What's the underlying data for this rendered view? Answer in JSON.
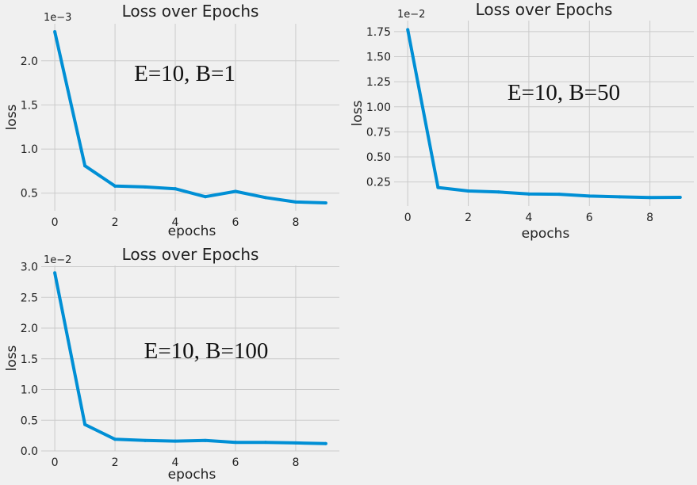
{
  "chart_data": [
    {
      "type": "line",
      "title": "Loss over Epochs",
      "xlabel": "epochs",
      "ylabel": "loss",
      "offset_text": "1e−3",
      "annotation": "E=10, B=1",
      "color": "#008fd5",
      "grid": true,
      "x": [
        0,
        1,
        2,
        3,
        4,
        5,
        6,
        7,
        8,
        9
      ],
      "y": [
        0.00233,
        0.00081,
        0.00058,
        0.00057,
        0.00055,
        0.00046,
        0.00052,
        0.00045,
        0.0004,
        0.00039
      ],
      "xlim": [
        -0.45,
        9.45
      ],
      "ylim": [
        0.0003,
        0.00242
      ],
      "xticks": [
        0,
        2,
        4,
        6,
        8
      ],
      "xtick_labels": [
        "0",
        "2",
        "4",
        "6",
        "8"
      ],
      "yticks": [
        0.0005,
        0.001,
        0.0015,
        0.002
      ],
      "ytick_labels": [
        "0.5",
        "1.0",
        "1.5",
        "2.0"
      ]
    },
    {
      "type": "line",
      "title": "Loss over Epochs",
      "xlabel": "epochs",
      "ylabel": "loss",
      "offset_text": "1e−2",
      "annotation": "E=10, B=50",
      "color": "#008fd5",
      "grid": true,
      "x": [
        0,
        1,
        2,
        3,
        4,
        5,
        6,
        7,
        8,
        9
      ],
      "y": [
        0.0177,
        0.00195,
        0.0016,
        0.0015,
        0.0013,
        0.00128,
        0.0011,
        0.00102,
        0.00095,
        0.00097
      ],
      "xlim": [
        -0.45,
        9.45
      ],
      "ylim": [
        0.0001,
        0.0186
      ],
      "xticks": [
        0,
        2,
        4,
        6,
        8
      ],
      "xtick_labels": [
        "0",
        "2",
        "4",
        "6",
        "8"
      ],
      "yticks": [
        0.0025,
        0.005,
        0.0075,
        0.01,
        0.0125,
        0.015,
        0.0175
      ],
      "ytick_labels": [
        "0.25",
        "0.50",
        "0.75",
        "1.00",
        "1.25",
        "1.50",
        "1.75"
      ]
    },
    {
      "type": "line",
      "title": "Loss over Epochs",
      "xlabel": "epochs",
      "ylabel": "loss",
      "offset_text": "1e−2",
      "annotation": "E=10, B=100",
      "color": "#008fd5",
      "grid": true,
      "x": [
        0,
        1,
        2,
        3,
        4,
        5,
        6,
        7,
        8,
        9
      ],
      "y": [
        0.029,
        0.0043,
        0.0019,
        0.0017,
        0.0016,
        0.0017,
        0.0014,
        0.0014,
        0.0013,
        0.0012
      ],
      "xlim": [
        -0.45,
        9.45
      ],
      "ylim": [
        0.0,
        0.0302
      ],
      "xticks": [
        0,
        2,
        4,
        6,
        8
      ],
      "xtick_labels": [
        "0",
        "2",
        "4",
        "6",
        "8"
      ],
      "yticks": [
        0.0,
        0.005,
        0.01,
        0.015,
        0.02,
        0.025,
        0.03
      ],
      "ytick_labels": [
        "0.0",
        "0.5",
        "1.0",
        "1.5",
        "2.0",
        "2.5",
        "3.0"
      ]
    }
  ]
}
